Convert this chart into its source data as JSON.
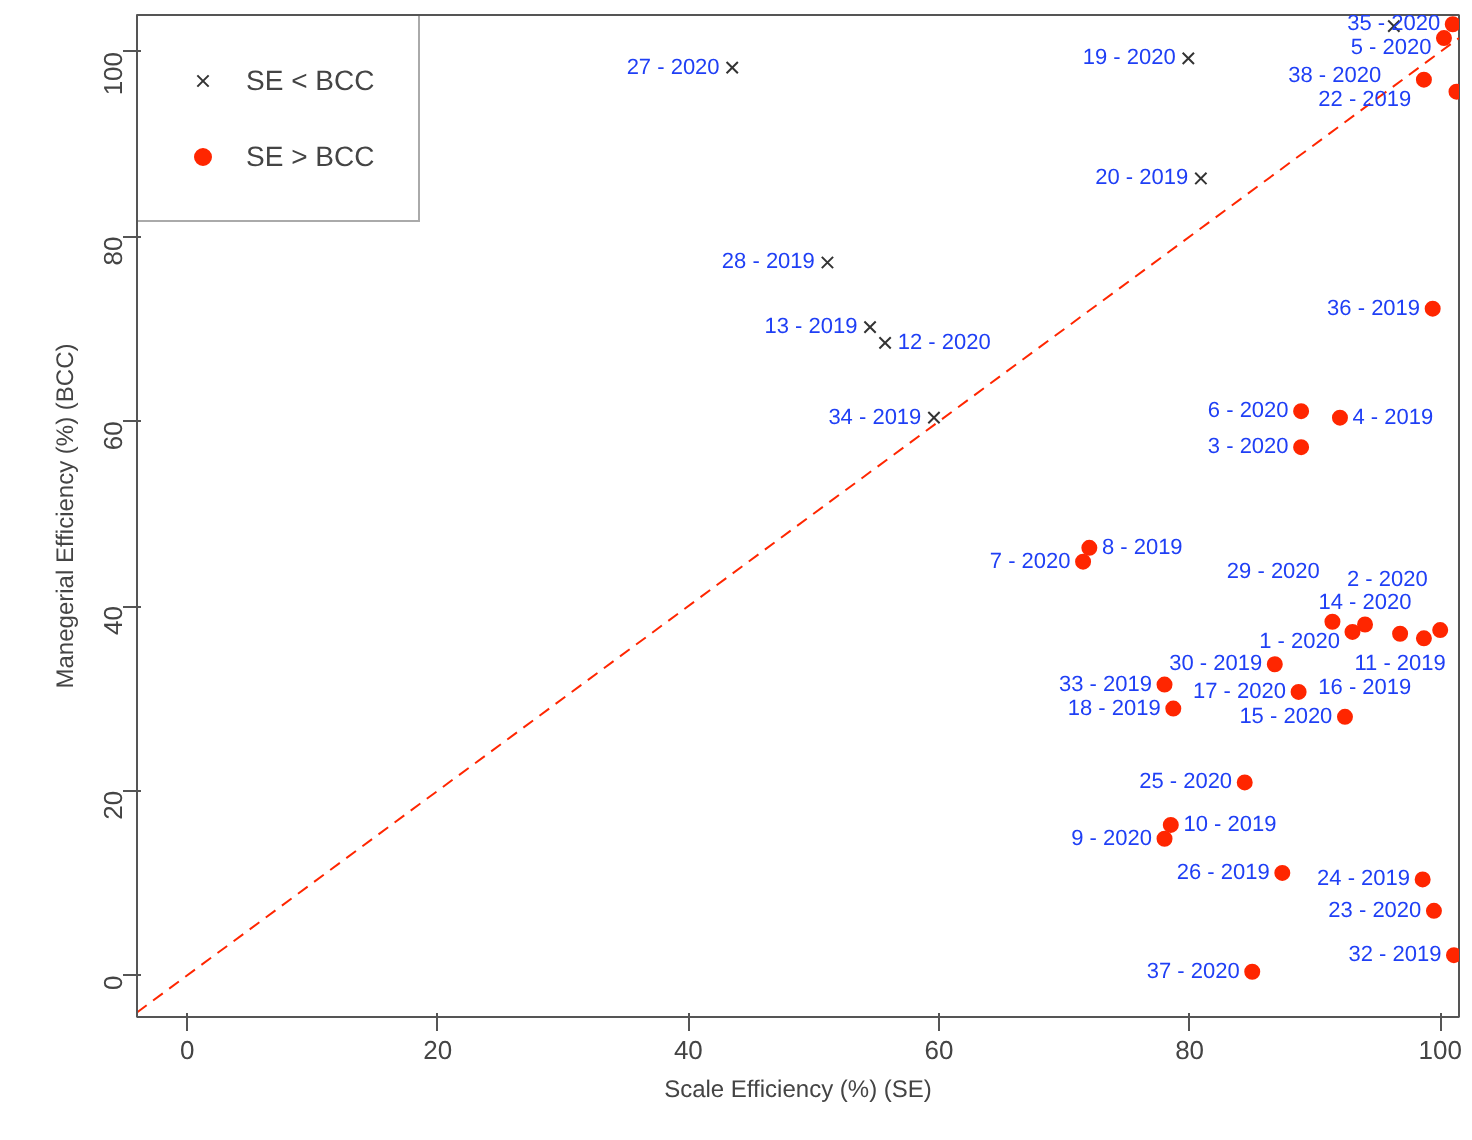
{
  "chart_data": {
    "type": "scatter",
    "xlabel": "Scale Efficiency (%) (SE)",
    "ylabel": "Manegerial Efficiency (%) (BCC)",
    "xlim": [
      -4,
      101.5
    ],
    "ylim": [
      -4.5,
      104
    ],
    "xticks": [
      0,
      20,
      40,
      60,
      80,
      100
    ],
    "yticks": [
      0,
      20,
      40,
      60,
      80,
      100
    ],
    "grid": false,
    "legend": "top left",
    "series": [
      {
        "name": "SE < BCC",
        "marker": "cross",
        "color": "#333333",
        "x": [
          43.5,
          79.9,
          80.9,
          96.3,
          51.1,
          54.5,
          55.7,
          59.6
        ],
        "values": [
          98.3,
          99.3,
          86.3,
          102.8,
          77.2,
          70.2,
          68.5,
          60.4
        ]
      },
      {
        "name": "SE > BCC",
        "marker": "circle",
        "color": "#ff2600",
        "x": [
          101.0,
          100.3,
          98.7,
          101.3,
          99.4,
          72.0,
          71.5,
          92.0,
          88.9,
          88.9,
          91.4,
          94.0,
          93.0,
          96.8,
          98.7,
          100.0,
          86.8,
          78.0,
          78.7,
          88.7,
          92.4,
          84.4,
          78.5,
          78.0,
          87.4,
          98.6,
          99.5,
          101.1,
          85.0
        ],
        "values": [
          103.0,
          101.5,
          97.0,
          95.7,
          72.2,
          46.3,
          44.8,
          60.4,
          61.1,
          57.2,
          38.3,
          38.0,
          37.2,
          37.0,
          36.5,
          37.4,
          33.7,
          31.5,
          28.9,
          30.7,
          28.0,
          20.9,
          16.3,
          14.8,
          11.1,
          10.4,
          7.0,
          2.2,
          0.4
        ]
      },
      {
        "type": "line",
        "marker": "none",
        "line_style": "dashed",
        "color": "#ff2600",
        "x": [
          -4,
          101.5
        ],
        "values": [
          -4,
          101.5
        ]
      }
    ],
    "annotations": [
      {
        "text": "27 - 2020",
        "x": 43.5,
        "y": 98.3
      },
      {
        "text": "19 - 2020",
        "x": 79.9,
        "y": 99.3
      },
      {
        "text": "20 - 2019",
        "x": 80.9,
        "y": 86.3
      },
      {
        "text": "38 - 2020",
        "x": 96.3,
        "y": 102.8
      },
      {
        "text": "35 - 2020",
        "x": 101.0,
        "y": 103.0
      },
      {
        "text": "5 - 2020",
        "x": 100.3,
        "y": 101.5
      },
      {
        "text": "22 - 2019",
        "x": 98.7,
        "y": 97.0
      },
      {
        "text": "36 - 2019",
        "x": 99.4,
        "y": 72.2
      },
      {
        "text": "28 - 2019",
        "x": 51.1,
        "y": 77.2
      },
      {
        "text": "13 - 2019",
        "x": 54.5,
        "y": 70.2
      },
      {
        "text": "12 - 2020",
        "x": 55.7,
        "y": 68.5
      },
      {
        "text": "34 - 2019",
        "x": 59.6,
        "y": 60.4
      },
      {
        "text": "8 - 2019",
        "x": 72.0,
        "y": 46.3
      },
      {
        "text": "7 - 2020",
        "x": 71.5,
        "y": 44.8
      },
      {
        "text": "4 - 2019",
        "x": 92.0,
        "y": 60.4
      },
      {
        "text": "6 - 2020",
        "x": 88.9,
        "y": 61.1
      },
      {
        "text": "3 - 2020",
        "x": 88.9,
        "y": 57.2
      },
      {
        "text": "29 - 2020",
        "x": 91.4,
        "y": 38.3
      },
      {
        "text": "14 - 2020",
        "x": 94.0,
        "y": 38.0
      },
      {
        "text": "1 - 2020",
        "x": 93.0,
        "y": 37.2
      },
      {
        "text": "11 - 2019",
        "x": 96.8,
        "y": 37.0
      },
      {
        "text": "16 - 2019",
        "x": 98.7,
        "y": 36.5
      },
      {
        "text": "2 - 2020",
        "x": 100.0,
        "y": 37.4
      },
      {
        "text": "30 - 2019",
        "x": 86.8,
        "y": 33.7
      },
      {
        "text": "33 - 2019",
        "x": 78.0,
        "y": 31.5
      },
      {
        "text": "18 - 2019",
        "x": 78.7,
        "y": 28.9
      },
      {
        "text": "17 - 2020",
        "x": 88.7,
        "y": 30.7
      },
      {
        "text": "15 - 2020",
        "x": 92.4,
        "y": 28.0
      },
      {
        "text": "25 - 2020",
        "x": 84.4,
        "y": 20.9
      },
      {
        "text": "10 - 2019",
        "x": 78.5,
        "y": 16.3
      },
      {
        "text": "9 - 2020",
        "x": 78.0,
        "y": 14.8
      },
      {
        "text": "26 - 2019",
        "x": 87.4,
        "y": 11.1
      },
      {
        "text": "24 - 2019",
        "x": 98.6,
        "y": 10.4
      },
      {
        "text": "23 - 2020",
        "x": 99.5,
        "y": 7.0
      },
      {
        "text": "32 - 2019",
        "x": 101.1,
        "y": 2.2
      },
      {
        "text": "37 - 2020",
        "x": 85.0,
        "y": 0.4
      }
    ]
  }
}
